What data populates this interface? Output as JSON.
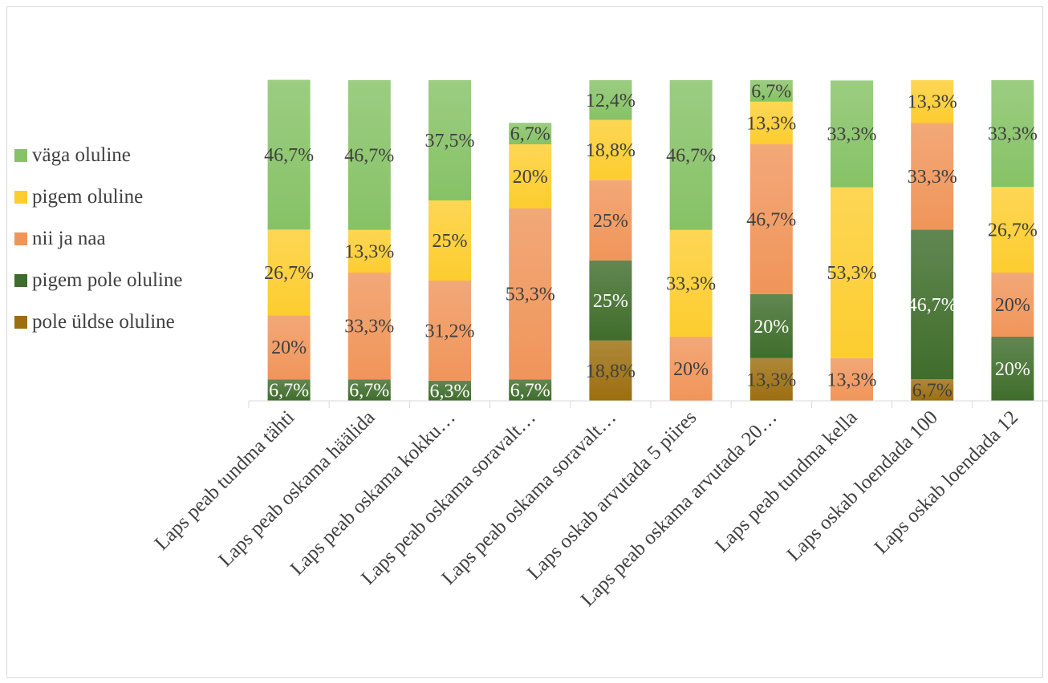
{
  "chart_data": {
    "type": "bar",
    "stacked": true,
    "percent_stacked": true,
    "categories": [
      "Laps peab tundma tähti",
      "Laps peab oskama häälida",
      "Laps peab oskama kokku…",
      "Laps peab oskama soravalt…",
      "Laps peab oskama soravalt…",
      "Laps oskab arvutada 5 piires",
      "Laps peab oskama arvutada 20…",
      "Laps peab tundma kella",
      "Laps oskab loendada 100",
      "Laps oskab loendada 12"
    ],
    "series": [
      {
        "name": "pole üldse oluline",
        "color": "#9c6e0f",
        "labelColor": "#404040",
        "values": [
          0,
          0,
          0,
          0,
          18.8,
          0,
          13.3,
          0,
          6.7,
          0
        ],
        "labels": [
          "",
          "",
          "",
          "",
          "18,8%",
          "",
          "13,3%",
          "",
          "6,7%",
          ""
        ]
      },
      {
        "name": "pigem pole oluline",
        "color": "#3f6d2b",
        "labelColor": "#ffffff",
        "values": [
          6.7,
          6.7,
          6.3,
          6.7,
          25,
          0,
          20,
          0,
          46.7,
          20
        ],
        "labels": [
          "6,7%",
          "6,7%",
          "6,3%",
          "6,7%",
          "25%",
          "",
          "20%",
          "",
          "46,7%",
          "20%"
        ]
      },
      {
        "name": "nii ja naa",
        "color": "#f0955a",
        "labelColor": "#404040",
        "values": [
          20,
          33.3,
          31.2,
          53.3,
          25,
          20,
          46.7,
          13.3,
          33.3,
          20
        ],
        "labels": [
          "20%",
          "33,3%",
          "31,2%",
          "53,3%",
          "25%",
          "20%",
          "46,7%",
          "13,3%",
          "33,3%",
          "20%"
        ]
      },
      {
        "name": "pigem oluline",
        "color": "#fdcd2f",
        "labelColor": "#404040",
        "values": [
          26.7,
          13.3,
          25,
          20,
          18.8,
          33.3,
          13.3,
          53.3,
          13.3,
          26.7
        ],
        "labels": [
          "26,7%",
          "13,3%",
          "25%",
          "20%",
          "18,8%",
          "33,3%",
          "13,3%",
          "53,3%",
          "13,3%",
          "26,7%"
        ]
      },
      {
        "name": "väga oluline",
        "color": "#86c266",
        "labelColor": "#404040",
        "values": [
          46.7,
          46.7,
          37.5,
          6.7,
          12.4,
          46.7,
          6.7,
          33.3,
          0,
          33.3
        ],
        "labels": [
          "46,7%",
          "46,7%",
          "37,5%",
          "6,7%",
          "12,4%",
          "46,7%",
          "6,7%",
          "33,3%",
          "",
          "33,3%"
        ]
      }
    ],
    "legend_order": [
      "väga oluline",
      "pigem oluline",
      "nii ja naa",
      "pigem pole oluline",
      "pole üldse oluline"
    ],
    "legend_position": "left",
    "ylim": [
      0,
      100
    ],
    "grid": false,
    "xlabel": "",
    "ylabel": ""
  }
}
